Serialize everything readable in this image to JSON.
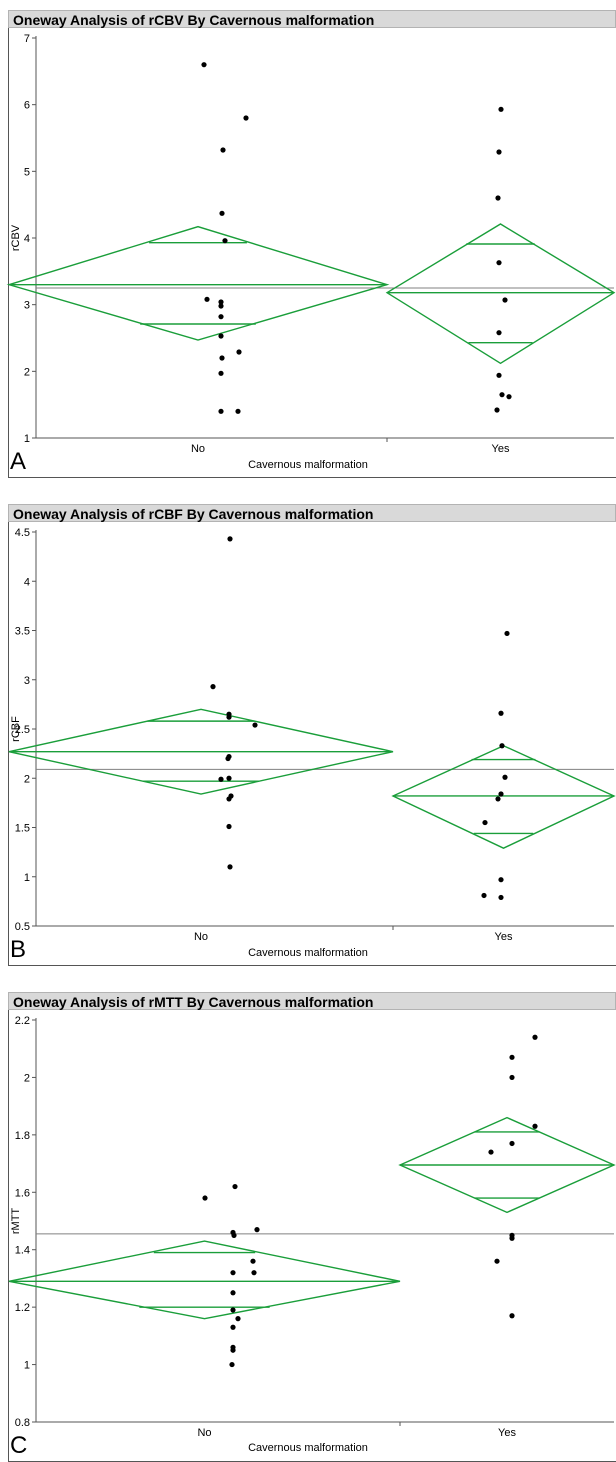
{
  "chart_data": [
    {
      "type": "scatter",
      "panel_letter": "A",
      "title": "Oneway Analysis of rCBV By Cavernous malformation",
      "xlabel": "Cavernous malformation",
      "ylabel": "rCBV",
      "categories": [
        "No",
        "Yes"
      ],
      "ylim": [
        1,
        7
      ],
      "yticks": [
        1,
        2,
        3,
        4,
        5,
        6,
        7
      ],
      "grand_mean": 3.25,
      "groups": [
        {
          "name": "No",
          "mean": 3.3,
          "ci": [
            2.47,
            4.17
          ],
          "overlap": [
            2.71,
            3.93
          ],
          "points": [
            6.6,
            5.8,
            5.32,
            4.37,
            3.96,
            3.08,
            3.04,
            2.98,
            2.82,
            2.53,
            2.29,
            2.2,
            1.97,
            1.4,
            1.4
          ]
        },
        {
          "name": "Yes",
          "mean": 3.18,
          "ci": [
            2.12,
            4.21
          ],
          "overlap": [
            2.43,
            3.91
          ],
          "points": [
            5.93,
            5.29,
            4.6,
            3.63,
            3.07,
            2.58,
            1.94,
            1.65,
            1.62,
            1.42
          ]
        }
      ]
    },
    {
      "type": "scatter",
      "panel_letter": "B",
      "title": "Oneway Analysis of rCBF By Cavernous malformation",
      "xlabel": "Cavernous malformation",
      "ylabel": "rCBF",
      "categories": [
        "No",
        "Yes"
      ],
      "ylim": [
        0.5,
        4.5
      ],
      "yticks": [
        0.5,
        1,
        1.5,
        2,
        2.5,
        3,
        3.5,
        4,
        4.5
      ],
      "grand_mean": 2.09,
      "groups": [
        {
          "name": "No",
          "mean": 2.27,
          "ci": [
            1.84,
            2.7
          ],
          "overlap": [
            1.97,
            2.58
          ],
          "points": [
            4.43,
            2.93,
            2.65,
            2.62,
            2.54,
            2.22,
            2.2,
            2.0,
            1.99,
            1.82,
            1.79,
            1.51,
            1.1
          ]
        },
        {
          "name": "Yes",
          "mean": 1.82,
          "ci": [
            1.29,
            2.33
          ],
          "overlap": [
            1.44,
            2.19
          ],
          "points": [
            3.47,
            2.66,
            2.33,
            2.01,
            1.84,
            1.79,
            1.55,
            0.97,
            0.81,
            0.79
          ]
        }
      ]
    },
    {
      "type": "scatter",
      "panel_letter": "C",
      "title": "Oneway Analysis of rMTT By Cavernous malformation",
      "xlabel": "Cavernous malformation",
      "ylabel": "rMTT",
      "categories": [
        "No",
        "Yes"
      ],
      "ylim": [
        0.8,
        2.2
      ],
      "yticks": [
        0.8,
        1,
        1.2,
        1.4,
        1.6,
        1.8,
        2,
        2.2
      ],
      "grand_mean": 1.455,
      "groups": [
        {
          "name": "No",
          "mean": 1.29,
          "ci": [
            1.16,
            1.43
          ],
          "overlap": [
            1.2,
            1.39
          ],
          "points": [
            1.62,
            1.58,
            1.47,
            1.46,
            1.45,
            1.36,
            1.32,
            1.32,
            1.25,
            1.19,
            1.16,
            1.13,
            1.06,
            1.05,
            1.0
          ]
        },
        {
          "name": "Yes",
          "mean": 1.695,
          "ci": [
            1.53,
            1.86
          ],
          "overlap": [
            1.58,
            1.81
          ],
          "points": [
            2.14,
            2.07,
            2.0,
            1.83,
            1.77,
            1.74,
            1.45,
            1.44,
            1.36,
            1.17
          ]
        }
      ]
    }
  ]
}
